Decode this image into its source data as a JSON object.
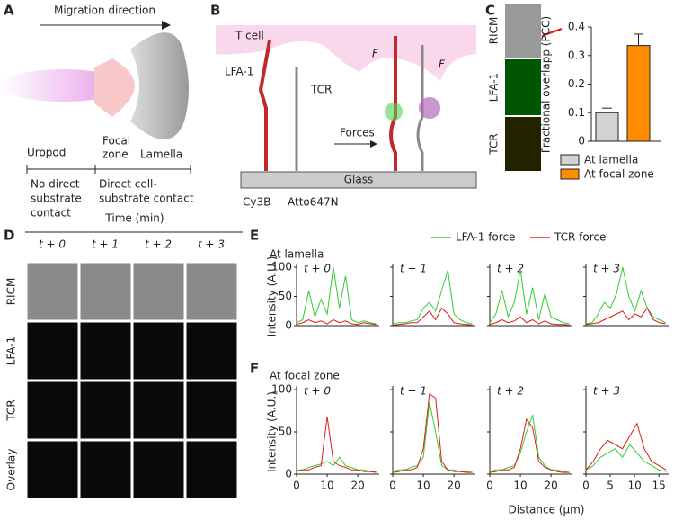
{
  "panel_labels": [
    "A",
    "B",
    "C",
    "D",
    "E",
    "F"
  ],
  "panel_a": {
    "title": "Migration direction",
    "uropod": "Uropod",
    "focal": [
      "Focal",
      "zone"
    ],
    "lamella": "Lamella",
    "no_contact": [
      "No direct",
      "substrate",
      "contact"
    ],
    "contact": [
      "Direct cell-",
      "substrate contact"
    ]
  },
  "panel_b": {
    "cell": "T cell",
    "lfa": "LFA-1",
    "tcr": "TCR",
    "forces": "Forces",
    "glass": "Glass",
    "dyes": [
      "Cy3B",
      "Atto647N"
    ],
    "force_symbol": "F"
  },
  "panel_c": {
    "image_labels": [
      "RICM",
      "LFA-1",
      "TCR"
    ],
    "ylabel": "Fractional overlapp (PCC)",
    "ylim": [
      0,
      0.4
    ],
    "yticks": [
      0,
      0.1,
      0.2,
      0.3,
      0.4
    ],
    "categories": [
      "At lamella",
      "At focal zone"
    ],
    "values": [
      0.1,
      0.335
    ],
    "errors": [
      0.016,
      0.04
    ],
    "colors": [
      "#d3d3d3",
      "#ff8c00"
    ]
  },
  "panel_d": {
    "axis_title": "Time (min)",
    "times": [
      "t + 0",
      "t + 1",
      "t + 2",
      "t + 3"
    ],
    "rows": [
      "RICM",
      "LFA-1",
      "TCR",
      "Overlay"
    ]
  },
  "line_common": {
    "legend": [
      {
        "name": "LFA-1 force",
        "color": "#33cc33"
      },
      {
        "name": "TCR force",
        "color": "#e01818"
      }
    ],
    "ylabel": "Intensity (A.U.)",
    "xlabel": "Distance (μm)",
    "ylim": [
      0,
      100
    ],
    "yticks": [
      0,
      50,
      100
    ]
  },
  "panel_e": {
    "subtitle": "At lamella",
    "subtitle_color": "#e0208a",
    "plots": [
      {
        "time": "t + 0",
        "xlim": [
          0,
          27
        ],
        "x": [
          0,
          2,
          4,
          6,
          8,
          10,
          12,
          14,
          16,
          18,
          20,
          22,
          24,
          26
        ],
        "lfa": [
          5,
          10,
          60,
          15,
          45,
          20,
          100,
          30,
          85,
          10,
          5,
          8,
          5,
          3
        ],
        "tcr": [
          2,
          5,
          10,
          5,
          8,
          3,
          10,
          5,
          8,
          3,
          2,
          5,
          3,
          2
        ]
      },
      {
        "time": "t + 1",
        "xlim": [
          0,
          27
        ],
        "x": [
          0,
          2,
          4,
          6,
          8,
          10,
          12,
          14,
          16,
          18,
          20,
          22,
          24,
          26
        ],
        "lfa": [
          3,
          5,
          5,
          8,
          10,
          30,
          40,
          25,
          60,
          95,
          20,
          10,
          5,
          3
        ],
        "tcr": [
          1,
          2,
          3,
          5,
          5,
          15,
          25,
          10,
          30,
          20,
          5,
          3,
          2,
          1
        ]
      },
      {
        "time": "t + 2",
        "xlim": [
          0,
          27
        ],
        "x": [
          0,
          2,
          4,
          6,
          8,
          10,
          12,
          14,
          16,
          18,
          20,
          22,
          24,
          26
        ],
        "lfa": [
          5,
          20,
          60,
          15,
          40,
          95,
          20,
          65,
          10,
          55,
          15,
          10,
          5,
          3
        ],
        "tcr": [
          2,
          5,
          10,
          5,
          8,
          15,
          5,
          10,
          3,
          8,
          3,
          2,
          2,
          1
        ]
      },
      {
        "time": "t + 3",
        "xlim": [
          0,
          27
        ],
        "x": [
          0,
          2,
          4,
          6,
          8,
          10,
          12,
          14,
          16,
          18,
          20,
          22,
          24,
          26
        ],
        "lfa": [
          3,
          5,
          20,
          40,
          30,
          55,
          100,
          50,
          25,
          60,
          30,
          15,
          10,
          5
        ],
        "tcr": [
          2,
          3,
          5,
          10,
          15,
          20,
          25,
          10,
          20,
          15,
          30,
          10,
          5,
          3
        ]
      }
    ]
  },
  "panel_f": {
    "subtitle": "At focal zone",
    "subtitle_color": "#f0901a",
    "plots": [
      {
        "time": "t + 0",
        "xlim": [
          0,
          27
        ],
        "xticks": [
          0,
          10,
          20
        ],
        "x": [
          0,
          2,
          4,
          6,
          8,
          10,
          12,
          14,
          16,
          18,
          20,
          22,
          24,
          26
        ],
        "lfa": [
          5,
          5,
          8,
          10,
          12,
          15,
          10,
          20,
          10,
          8,
          5,
          5,
          3,
          3
        ],
        "tcr": [
          3,
          5,
          5,
          8,
          10,
          68,
          15,
          10,
          8,
          5,
          5,
          3,
          3,
          2
        ]
      },
      {
        "time": "t + 1",
        "xlim": [
          0,
          27
        ],
        "xticks": [
          0,
          10,
          20
        ],
        "x": [
          0,
          2,
          4,
          6,
          8,
          10,
          12,
          14,
          16,
          18,
          20,
          22,
          24,
          26
        ],
        "lfa": [
          3,
          5,
          5,
          8,
          10,
          20,
          85,
          50,
          10,
          5,
          5,
          3,
          3,
          2
        ],
        "tcr": [
          2,
          3,
          5,
          5,
          8,
          30,
          95,
          90,
          15,
          5,
          3,
          3,
          2,
          2
        ]
      },
      {
        "time": "t + 2",
        "xlim": [
          0,
          27
        ],
        "xticks": [
          0,
          10,
          20
        ],
        "x": [
          0,
          2,
          4,
          6,
          8,
          10,
          12,
          14,
          16,
          18,
          20,
          22,
          24,
          26
        ],
        "lfa": [
          3,
          5,
          5,
          8,
          10,
          25,
          50,
          70,
          20,
          10,
          5,
          5,
          3,
          2
        ],
        "tcr": [
          2,
          3,
          5,
          5,
          8,
          30,
          65,
          55,
          15,
          8,
          5,
          3,
          2,
          2
        ]
      },
      {
        "time": "t + 3",
        "xlim": [
          0,
          17
        ],
        "xticks": [
          0,
          5,
          10,
          15
        ],
        "x": [
          0,
          1.5,
          3,
          4.5,
          6,
          7.5,
          9,
          10.5,
          12,
          13.5,
          15,
          16.5
        ],
        "lfa": [
          5,
          10,
          20,
          25,
          30,
          20,
          35,
          25,
          15,
          10,
          5,
          3
        ],
        "tcr": [
          5,
          15,
          30,
          40,
          35,
          30,
          45,
          60,
          30,
          15,
          10,
          5
        ]
      }
    ]
  }
}
